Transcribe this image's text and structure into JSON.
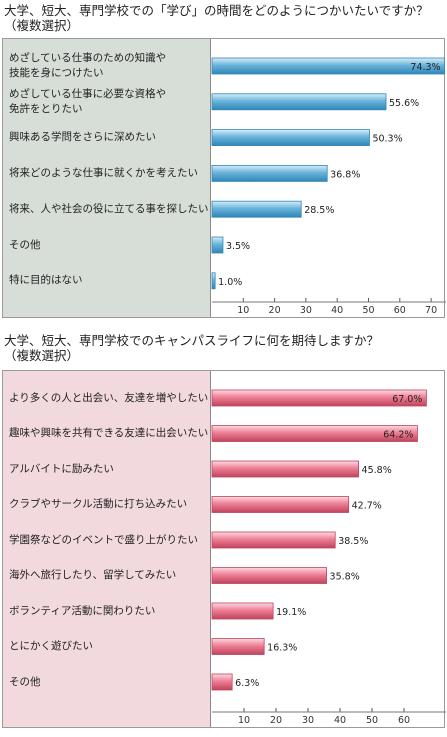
{
  "chart_data": [
    {
      "type": "bar",
      "orientation": "horizontal",
      "title": "大学、短大、専門学校での「学び」の時間をどのようにつかいたいですか？",
      "subtitle": "（複数選択）",
      "categories": [
        "めざしている仕事のための知識や\n技能を身につけたい",
        "めざしている仕事に必要な資格や\n免許をとりたい",
        "興味ある学問をさらに深めたい",
        "将来どのような仕事に就くかを考えたい",
        "将来、人や社会の役に立てる事を探したい",
        "その他",
        "特に目的はない"
      ],
      "values": [
        74.3,
        55.6,
        50.3,
        36.8,
        28.5,
        3.5,
        1.0
      ],
      "value_labels": [
        "74.3%",
        "55.6%",
        "50.3%",
        "36.8%",
        "28.5%",
        "3.5%",
        "1.0%"
      ],
      "xticks": [
        10,
        20,
        30,
        40,
        50,
        60,
        70
      ],
      "xlim": [
        0,
        75
      ],
      "bar_color": "#6ab4da",
      "bar_dark": "#2f86b8",
      "bar_light": "#d6eef9",
      "grid": false
    },
    {
      "type": "bar",
      "orientation": "horizontal",
      "title": "大学、短大、専門学校でのキャンパスライフに何を期待しますか？",
      "subtitle": "（複数選択）",
      "categories": [
        "より多くの人と出会い、友達を増やしたい",
        "趣味や興味を共有できる友達に出会いたい",
        "アルバイトに励みたい",
        "クラブやサークル活動に打ち込みたい",
        "学園祭などのイベントで盛り上がりたい",
        "海外へ旅行したり、留学してみたい",
        "ボランティア活動に関わりたい",
        "とにかく遊びたい",
        "その他"
      ],
      "values": [
        67.0,
        64.2,
        45.8,
        42.7,
        38.5,
        35.8,
        19.1,
        16.3,
        6.3
      ],
      "value_labels": [
        "67.0%",
        "64.2%",
        "45.8%",
        "42.7%",
        "38.5%",
        "35.8%",
        "19.1%",
        "16.3%",
        "6.3%"
      ],
      "xticks": [
        10,
        20,
        30,
        40,
        50,
        60
      ],
      "xlim": [
        0,
        70
      ],
      "bar_color": "#ee7f95",
      "bar_dark": "#c0435d",
      "bar_light": "#fbdbe2",
      "grid": false
    }
  ]
}
